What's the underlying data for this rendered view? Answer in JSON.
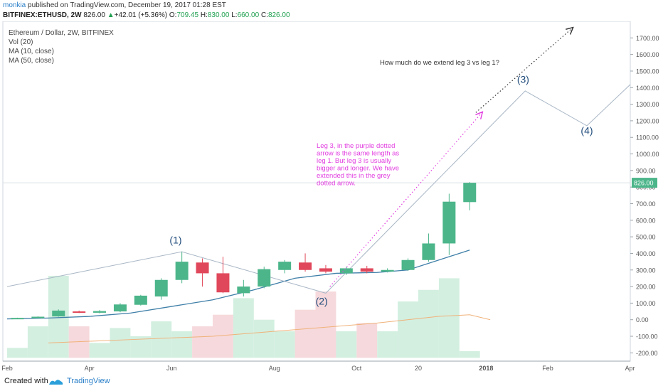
{
  "header": {
    "author": "monkia",
    "published_text": "published on TradingView.com, December 19, 2017 01:28 EST",
    "symbol_line": "BITFINEX:ETHUSD, 2W",
    "last_price": "826.00",
    "change_arrow": "▲",
    "change": "+42.01 (+5.36%)",
    "open_label": "O:",
    "open": "709.45",
    "high_label": "H:",
    "high": "830.00",
    "low_label": "L:",
    "low": "660.00",
    "close_label": "C:",
    "close": "826.00"
  },
  "legend": {
    "title": "Ethereum / Dollar, 2W, BITFINEX",
    "indicators": [
      "Vol (20)",
      "MA (10, close)",
      "MA (50, close)"
    ]
  },
  "footer": {
    "created_with": "Created with",
    "brand": "TradingView",
    "logo_icon": "tradingview-logo-icon"
  },
  "colors": {
    "up": "#4cb58a",
    "down": "#e0475a",
    "vol_up": "#d3efe0",
    "vol_down": "#f6d9dc",
    "ma10": "#3f7fa8",
    "ma50": "#f0b27a",
    "annotation": "#e23ee0",
    "wave_line": "#a9b7c6",
    "label_text": "#1e4a7a"
  },
  "chart_data": {
    "type": "candlestick",
    "y_axis": {
      "ylim": [
        -250,
        1800
      ],
      "ticks": [
        1700,
        1600,
        1500,
        1400,
        1300,
        1200,
        1100,
        1000,
        900,
        800,
        700,
        600,
        500,
        400,
        300,
        200,
        100,
        0,
        -100,
        -200
      ],
      "tick_labels": [
        "1700.00",
        "1600.00",
        "1500.00",
        "1400.00",
        "1300.00",
        "1200.00",
        "1100.00",
        "1000.00",
        "900.00",
        "800.00",
        "700.00",
        "600.00",
        "500.00",
        "400.00",
        "300.00",
        "200.00",
        "100.00",
        "0.00",
        "-100.00",
        "-200.00"
      ],
      "last_price_label": "826.00",
      "last_price": 826
    },
    "x_axis": {
      "labels": [
        {
          "text": "Feb",
          "i": 0
        },
        {
          "text": "Apr",
          "i": 4
        },
        {
          "text": "Jun",
          "i": 8
        },
        {
          "text": "Aug",
          "i": 13
        },
        {
          "text": "Oct",
          "i": 17
        },
        {
          "text": "20",
          "i": 20
        },
        {
          "text": "2018",
          "i": 23.3,
          "bold": true
        },
        {
          "text": "Feb",
          "i": 26.3
        },
        {
          "text": "Apr",
          "i": 30.3
        }
      ]
    },
    "candles": [
      {
        "i": 0.5,
        "o": 8,
        "h": 12,
        "l": 7,
        "c": 11
      },
      {
        "i": 1.5,
        "o": 12,
        "h": 20,
        "l": 10,
        "c": 18
      },
      {
        "i": 2.5,
        "o": 20,
        "h": 62,
        "l": 18,
        "c": 55
      },
      {
        "i": 3.5,
        "o": 50,
        "h": 55,
        "l": 40,
        "c": 43
      },
      {
        "i": 4.5,
        "o": 42,
        "h": 58,
        "l": 38,
        "c": 52
      },
      {
        "i": 5.5,
        "o": 50,
        "h": 100,
        "l": 45,
        "c": 92
      },
      {
        "i": 6.5,
        "o": 90,
        "h": 150,
        "l": 85,
        "c": 145
      },
      {
        "i": 7.5,
        "o": 140,
        "h": 250,
        "l": 120,
        "c": 240
      },
      {
        "i": 8.5,
        "o": 240,
        "h": 410,
        "l": 220,
        "c": 350
      },
      {
        "i": 9.5,
        "o": 345,
        "h": 370,
        "l": 200,
        "c": 280
      },
      {
        "i": 10.5,
        "o": 280,
        "h": 380,
        "l": 160,
        "c": 165
      },
      {
        "i": 11.5,
        "o": 160,
        "h": 240,
        "l": 140,
        "c": 200
      },
      {
        "i": 12.5,
        "o": 200,
        "h": 320,
        "l": 190,
        "c": 305
      },
      {
        "i": 13.5,
        "o": 300,
        "h": 360,
        "l": 280,
        "c": 350
      },
      {
        "i": 14.5,
        "o": 345,
        "h": 400,
        "l": 290,
        "c": 300
      },
      {
        "i": 15.5,
        "o": 310,
        "h": 330,
        "l": 280,
        "c": 290
      },
      {
        "i": 16.5,
        "o": 280,
        "h": 320,
        "l": 270,
        "c": 310
      },
      {
        "i": 17.5,
        "o": 310,
        "h": 325,
        "l": 280,
        "c": 290
      },
      {
        "i": 18.5,
        "o": 290,
        "h": 310,
        "l": 285,
        "c": 300
      },
      {
        "i": 19.5,
        "o": 300,
        "h": 370,
        "l": 295,
        "c": 360
      },
      {
        "i": 20.5,
        "o": 360,
        "h": 520,
        "l": 350,
        "c": 460
      },
      {
        "i": 21.5,
        "o": 460,
        "h": 760,
        "l": 390,
        "c": 712
      },
      {
        "i": 22.5,
        "o": 709.45,
        "h": 830,
        "l": 660,
        "c": 826
      }
    ],
    "volume": [
      {
        "i": 0.5,
        "v": -170,
        "up": true
      },
      {
        "i": 1.5,
        "v": -40,
        "up": true
      },
      {
        "i": 2.5,
        "v": 265,
        "up": true
      },
      {
        "i": 3.5,
        "v": -40,
        "up": false
      },
      {
        "i": 4.5,
        "v": -140,
        "up": true
      },
      {
        "i": 5.5,
        "v": -50,
        "up": true
      },
      {
        "i": 6.5,
        "v": -100,
        "up": true
      },
      {
        "i": 7.5,
        "v": -10,
        "up": true
      },
      {
        "i": 8.5,
        "v": -70,
        "up": true
      },
      {
        "i": 9.5,
        "v": -40,
        "up": false
      },
      {
        "i": 10.5,
        "v": 30,
        "up": false
      },
      {
        "i": 11.5,
        "v": 130,
        "up": true
      },
      {
        "i": 12.5,
        "v": 0,
        "up": true
      },
      {
        "i": 13.5,
        "v": -70,
        "up": true
      },
      {
        "i": 14.5,
        "v": 60,
        "up": false
      },
      {
        "i": 15.5,
        "v": 170,
        "up": false
      },
      {
        "i": 16.5,
        "v": -70,
        "up": true
      },
      {
        "i": 17.5,
        "v": -20,
        "up": false
      },
      {
        "i": 18.5,
        "v": -70,
        "up": true
      },
      {
        "i": 19.5,
        "v": 110,
        "up": true
      },
      {
        "i": 20.5,
        "v": 180,
        "up": true
      },
      {
        "i": 21.5,
        "v": 250,
        "up": true
      },
      {
        "i": 22.5,
        "v": -190,
        "up": true
      }
    ],
    "volume_baseline": -230,
    "ma10": [
      [
        0,
        5
      ],
      [
        2,
        10
      ],
      [
        4,
        20
      ],
      [
        6,
        40
      ],
      [
        8,
        80
      ],
      [
        10,
        120
      ],
      [
        12,
        180
      ],
      [
        14,
        250
      ],
      [
        16,
        280
      ],
      [
        18,
        285
      ],
      [
        19.5,
        300
      ],
      [
        21,
        360
      ],
      [
        22.5,
        420
      ]
    ],
    "ma50": [
      [
        2,
        -140
      ],
      [
        6,
        -120
      ],
      [
        10,
        -100
      ],
      [
        14,
        -60
      ],
      [
        18,
        -20
      ],
      [
        21,
        20
      ],
      [
        22.5,
        30
      ],
      [
        23.5,
        0
      ]
    ],
    "wave_path": [
      [
        0,
        200
      ],
      [
        8.5,
        410
      ],
      [
        15.5,
        160
      ],
      [
        25.2,
        1380
      ],
      [
        28.2,
        1170
      ],
      [
        31,
        1500
      ]
    ],
    "wave_labels": [
      {
        "text": "(1)",
        "i": 8.2,
        "y": 460
      },
      {
        "text": "(2)",
        "i": 15.3,
        "y": 90
      },
      {
        "text": "(3)",
        "i": 25.1,
        "y": 1430
      },
      {
        "text": "(4)",
        "i": 28.2,
        "y": 1120
      }
    ],
    "purple_arrow": {
      "from": [
        15.7,
        200
      ],
      "to": [
        23.1,
        1250
      ]
    },
    "black_arrow": {
      "from": [
        22.8,
        1250
      ],
      "to": [
        27.5,
        1760
      ]
    },
    "annotation_purple": [
      "Leg 3, in the purple dotted",
      "arrow is the same length as",
      "leg 1.  But leg 3 is usually",
      "bigger and longer.  We have",
      "extended this in the grey",
      "dotted arrow."
    ],
    "annotation_black": "How much do we extend leg 3 vs leg 1?"
  }
}
